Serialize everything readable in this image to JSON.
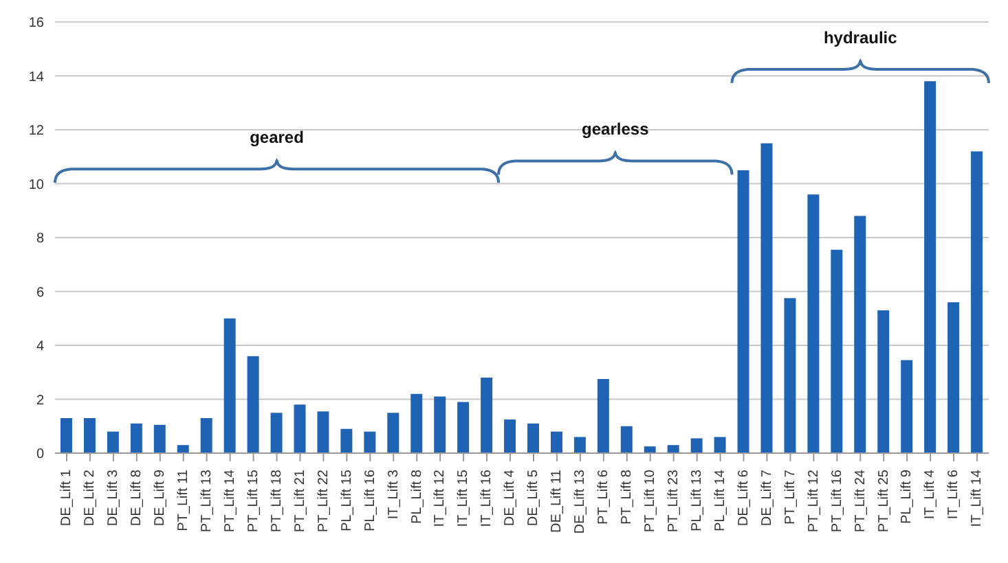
{
  "chart_data": {
    "type": "bar",
    "categories": [
      "DE_Lift 1",
      "DE_Lift 2",
      "DE_Lift 3",
      "DE_Lift 8",
      "DE_Lift 9",
      "PT_Lift 11",
      "PT_Lift 13",
      "PT_Lift 14",
      "PT_Lift 15",
      "PT_Lift 18",
      "PT_Lift 21",
      "PT_Lift 22",
      "PL_Lift 15",
      "PL_Lift 16",
      "IT_Lift 3",
      "PL_Lift 8",
      "IT_Lift 12",
      "IT_Lift 15",
      "IT_Lift 16",
      "DE_Lift 4",
      "DE_Lift 5",
      "DE_Lift 11",
      "DE_Lift 13",
      "PT_Lift 6",
      "PT_Lift 8",
      "PT_Lift 10",
      "PT_Lift 23",
      "PL_Lift 13",
      "PL_Lift 14",
      "DE_Lift 6",
      "DE_Lift 7",
      "PT_Lift 7",
      "PT_Lift 12",
      "PT_Lift 16",
      "PT_Lift 24",
      "PT_Lift 25",
      "PL_Lift 9",
      "IT_Lift 4",
      "IT_Lift 6",
      "IT_Lift 14"
    ],
    "values": [
      1.3,
      1.3,
      0.8,
      1.1,
      1.05,
      0.3,
      1.3,
      5.0,
      3.6,
      1.5,
      1.8,
      1.55,
      0.9,
      0.8,
      1.5,
      2.2,
      2.1,
      1.9,
      2.8,
      1.25,
      1.1,
      0.8,
      0.6,
      2.75,
      1.0,
      0.25,
      0.3,
      0.55,
      0.6,
      10.5,
      11.5,
      5.75,
      9.6,
      7.55,
      8.8,
      5.3,
      3.45,
      13.8,
      5.6,
      11.2
    ],
    "color": "#1f64b4",
    "ylim": [
      0,
      16
    ],
    "yticks": [
      0,
      2,
      4,
      6,
      8,
      10,
      12,
      14,
      16
    ],
    "grid": "y",
    "annotations": [
      "geared",
      "gearless",
      "hydraulic"
    ]
  }
}
